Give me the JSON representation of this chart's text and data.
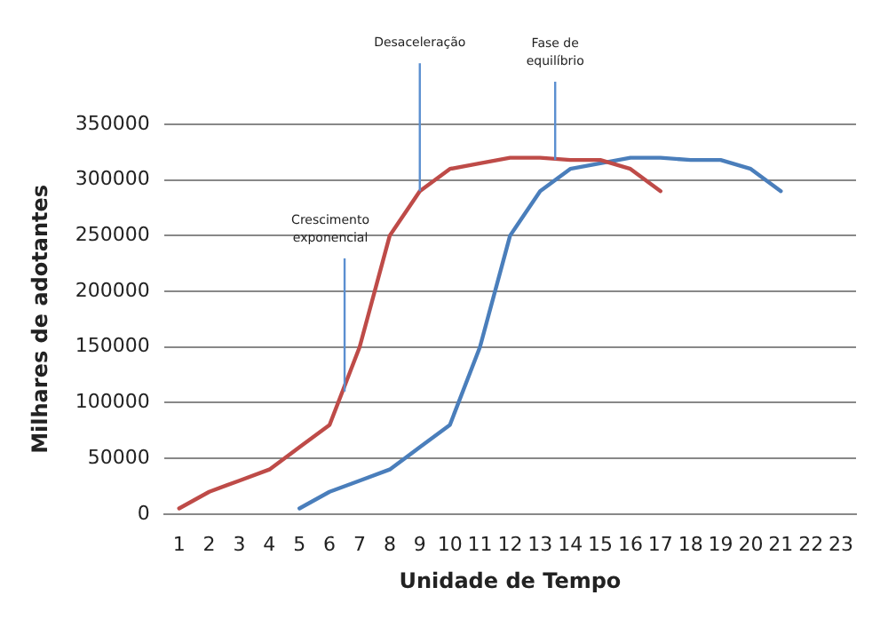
{
  "chart_data": {
    "type": "line",
    "xlabel": "Unidade de Tempo",
    "ylabel": "Milhares de adotantes",
    "x": [
      1,
      2,
      3,
      4,
      5,
      6,
      7,
      8,
      9,
      10,
      11,
      12,
      13,
      14,
      15,
      16,
      17,
      18,
      19,
      20,
      21
    ],
    "xlim": [
      0.5,
      23.5
    ],
    "xticks": [
      1,
      2,
      3,
      4,
      5,
      6,
      7,
      8,
      9,
      10,
      11,
      12,
      13,
      14,
      15,
      16,
      17,
      18,
      19,
      20,
      21,
      22,
      23
    ],
    "ylim": [
      0,
      350000
    ],
    "yticks": [
      0,
      50000,
      100000,
      150000,
      200000,
      250000,
      300000,
      350000
    ],
    "grid": "y",
    "legend": false,
    "marker": "none",
    "line_style": "solid",
    "series": [
      {
        "color": "#be4b48",
        "values": [
          5000,
          20000,
          30000,
          40000,
          60000,
          80000,
          150000,
          250000,
          290000,
          310000,
          315000,
          320000,
          320000,
          318000,
          318000,
          310000,
          290000,
          null,
          null,
          null,
          null
        ]
      },
      {
        "color": "#4a7ebb",
        "values": [
          null,
          null,
          null,
          null,
          5000,
          20000,
          30000,
          40000,
          60000,
          80000,
          150000,
          250000,
          290000,
          310000,
          315000,
          320000,
          320000,
          318000,
          318000,
          310000,
          290000
        ]
      }
    ],
    "annotations": [
      {
        "text": "Crescimento exponencial",
        "x": 6.5,
        "y": 110000
      },
      {
        "text": "Desaceleração",
        "x": 9,
        "y": 290000
      },
      {
        "text": "Fase de equilíbrio",
        "x": 13.5,
        "y": 318000
      }
    ]
  }
}
